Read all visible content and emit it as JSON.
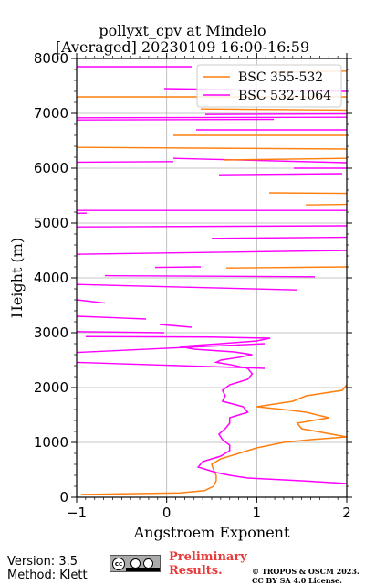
{
  "chart_data": {
    "type": "line",
    "title": "pollyxt_cpv at Mindelo",
    "subtitle": "[Averaged] 20230109 16:00-16:59",
    "xlabel": "Angstroem Exponent",
    "ylabel": "Height (m)",
    "xlim": [
      -1,
      2
    ],
    "ylim": [
      0,
      8000
    ],
    "xticks": [
      -1,
      0,
      1,
      2
    ],
    "yticks": [
      0,
      1000,
      2000,
      3000,
      4000,
      5000,
      6000,
      7000,
      8000
    ],
    "grid": true,
    "legend_position": "top-right",
    "series": [
      {
        "name": "BSC 355-532",
        "color": "#ff7f0e",
        "x": [
          -0.95,
          0.15,
          0.42,
          0.52,
          0.55,
          0.55,
          0.52,
          0.5,
          0.6,
          0.8,
          1.0,
          1.3,
          1.6,
          2.0,
          1.5,
          1.45,
          1.8,
          1.55,
          1.3,
          1.0,
          1.4,
          1.55,
          1.95,
          2.0
        ],
        "y": [
          50,
          80,
          120,
          200,
          300,
          400,
          500,
          600,
          700,
          800,
          900,
          1000,
          1050,
          1100,
          1250,
          1350,
          1450,
          1550,
          1600,
          1650,
          1750,
          1850,
          1950,
          2050
        ]
      },
      {
        "name": "BSC 532-1064",
        "color": "#ff00ff",
        "x": [
          2.0,
          1.5,
          0.9,
          0.7,
          0.55,
          0.45,
          0.35,
          0.4,
          0.6,
          0.7,
          0.7,
          0.62,
          0.58,
          0.65,
          0.7,
          0.7,
          0.9,
          0.85,
          0.62,
          0.65,
          0.62,
          0.7,
          0.9,
          0.95,
          0.9,
          0.7,
          0.55,
          0.6,
          0.8,
          0.95,
          0.75,
          0.3,
          0.15,
          0.6,
          1.0,
          1.15,
          0.5,
          -0.9
        ],
        "y": [
          250,
          300,
          350,
          400,
          450,
          500,
          550,
          650,
          750,
          850,
          950,
          1050,
          1150,
          1250,
          1350,
          1450,
          1550,
          1650,
          1750,
          1850,
          1950,
          2050,
          2150,
          2250,
          2350,
          2420,
          2460,
          2500,
          2550,
          2600,
          2650,
          2700,
          2750,
          2800,
          2850,
          2900,
          2920,
          2930
        ]
      }
    ],
    "annotations": []
  },
  "legend": {
    "item1": "BSC 355-532",
    "item2": "BSC 532-1064"
  },
  "footer": {
    "version": "Version: 3.5",
    "method": "Method: Klett",
    "preliminary_line1": "Preliminary",
    "preliminary_line2": "Results.",
    "copyright_line1": "© TROPOS & OSCM 2023.",
    "copyright_line2": "CC BY SA 4.0 License.",
    "license_logo_text": "cc"
  },
  "colors": {
    "orange": "#ff7f0e",
    "magenta": "#ff00ff",
    "grid": "#b0b0b0",
    "preliminary": "#e83a3a"
  }
}
